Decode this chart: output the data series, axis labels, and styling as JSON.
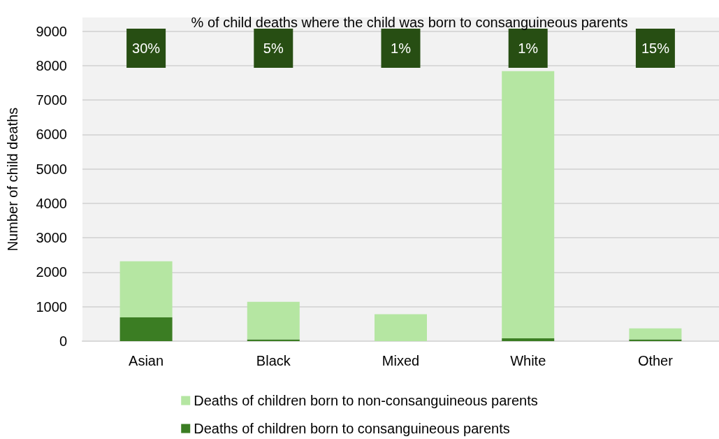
{
  "chart_data": {
    "type": "bar",
    "title": "% of child deaths where the child was born to consanguineous parents",
    "ylabel": "Number of child deaths",
    "categories": [
      "Asian",
      "Black",
      "Mixed",
      "White",
      "Other"
    ],
    "stacked": true,
    "series": [
      {
        "name": "Deaths of children born to consanguineous parents",
        "color": "#3b7d23",
        "values": [
          690,
          50,
          null,
          80,
          50
        ]
      },
      {
        "name": "Deaths of children born to non-consanguineous parents",
        "color": "#b5e6a2",
        "values": [
          1630,
          1090,
          780,
          7760,
          320
        ]
      }
    ],
    "annotations": [
      "30%",
      "5%",
      "1%",
      "1%",
      "15%"
    ],
    "ylim": [
      0,
      9400
    ],
    "yticks": [
      0,
      1000,
      2000,
      3000,
      4000,
      5000,
      6000,
      7000,
      8000,
      9000
    ],
    "grid": "y",
    "legend": "bottom"
  }
}
